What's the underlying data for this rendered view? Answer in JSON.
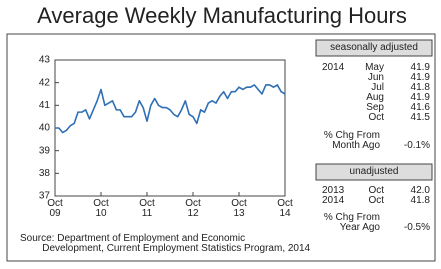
{
  "chart_data": {
    "type": "line",
    "title": "Average Weekly Manufacturing Hours",
    "categories": [
      "Oct\n09",
      null,
      null,
      null,
      null,
      null,
      null,
      null,
      null,
      null,
      null,
      null,
      "Oct\n10",
      null,
      null,
      null,
      null,
      null,
      null,
      null,
      null,
      null,
      null,
      null,
      "Oct\n11",
      null,
      null,
      null,
      null,
      null,
      null,
      null,
      null,
      null,
      null,
      null,
      "Oct\n12",
      null,
      null,
      null,
      null,
      null,
      null,
      null,
      null,
      null,
      null,
      null,
      "Oct\n13",
      null,
      null,
      null,
      null,
      null,
      null,
      null,
      null,
      null,
      null,
      null,
      "Oct\n14"
    ],
    "values": [
      40.0,
      40.0,
      39.8,
      39.9,
      40.1,
      40.2,
      40.7,
      40.7,
      40.8,
      40.4,
      40.8,
      41.2,
      41.7,
      41.0,
      41.1,
      41.2,
      40.8,
      40.8,
      40.5,
      40.5,
      40.5,
      40.7,
      41.2,
      40.9,
      40.3,
      41.0,
      41.3,
      41.0,
      40.9,
      40.9,
      40.8,
      40.6,
      40.5,
      40.8,
      41.2,
      40.6,
      40.5,
      40.2,
      40.8,
      40.7,
      41.1,
      41.2,
      41.1,
      41.4,
      41.6,
      41.3,
      41.6,
      41.6,
      41.8,
      41.7,
      41.8,
      41.8,
      41.9,
      41.7,
      41.5,
      41.9,
      41.9,
      41.8,
      41.9,
      41.6,
      41.5
    ],
    "color": "#2e6fb5",
    "ylim": [
      37,
      43
    ],
    "yticks": [
      37,
      38,
      39,
      40,
      41,
      42,
      43
    ],
    "grid": false,
    "source": "Source: Department of Employment and Economic\n        Development, Current Employment Statistics Program, 2014"
  },
  "panel": {
    "seasonal": {
      "heading": "seasonally adjusted",
      "rows": [
        {
          "year": "2014",
          "month": "May",
          "value": "41.9"
        },
        {
          "month": "Jun",
          "value": "41.9"
        },
        {
          "month": "Jul",
          "value": "41.8"
        },
        {
          "month": "Aug",
          "value": "41.9"
        },
        {
          "month": "Sep",
          "value": "41.6"
        },
        {
          "month": "Oct",
          "value": "41.5"
        }
      ],
      "change_label": "% Chg From\nMonth Ago",
      "change": "-0.1%"
    },
    "unadjusted": {
      "heading": "unadjusted",
      "rows": [
        {
          "year": "2013",
          "month": "Oct",
          "value": "42.0"
        },
        {
          "year": "2014",
          "month": "Oct",
          "value": "41.8"
        }
      ],
      "change_label": "% Chg From\nYear Ago",
      "change": "-0.5%"
    }
  }
}
